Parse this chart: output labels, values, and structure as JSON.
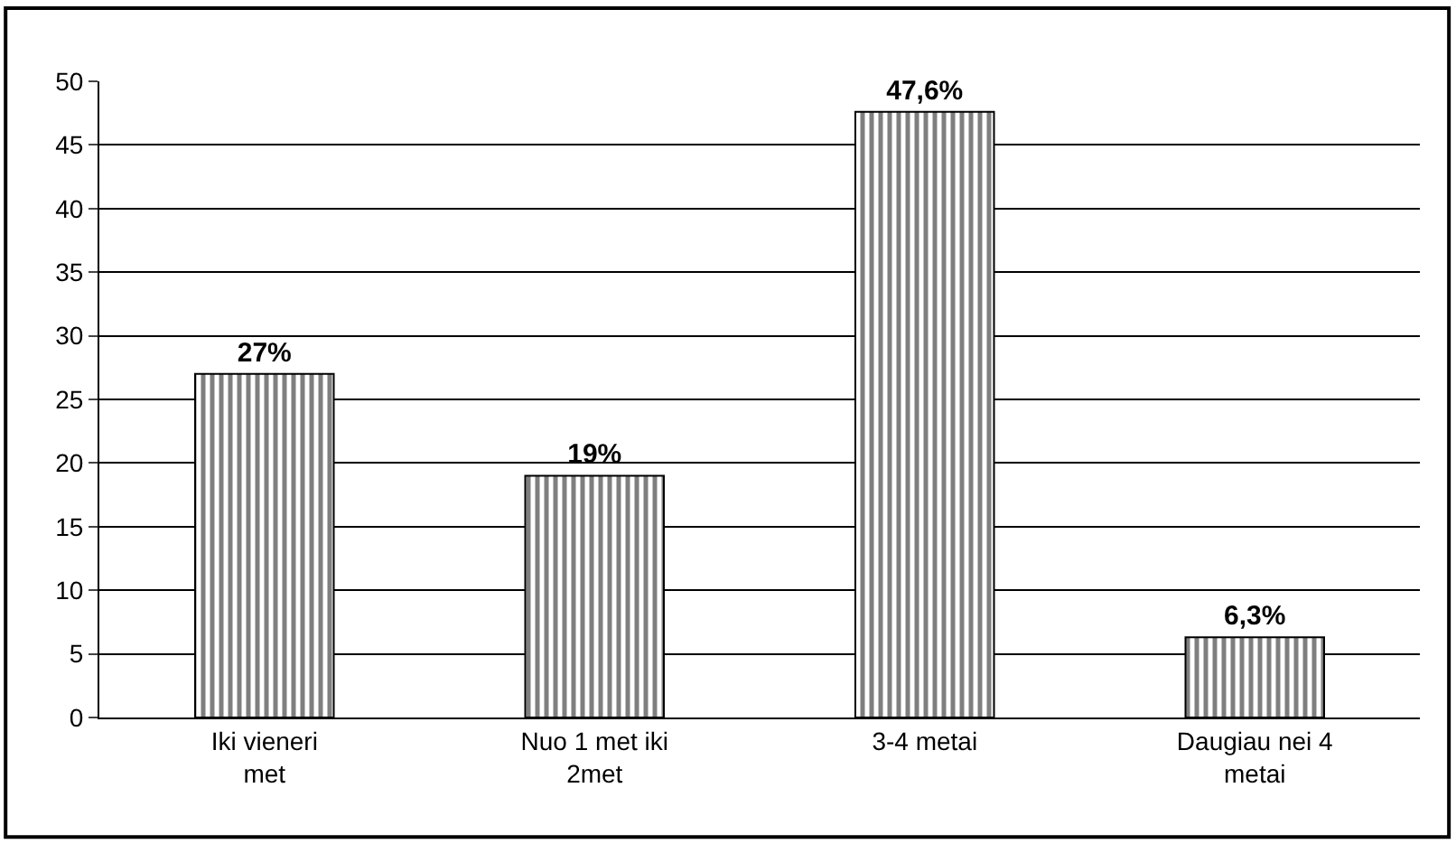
{
  "chart_data": {
    "type": "bar",
    "categories": [
      "Iki vieneri met",
      "Nuo 1 met iki 2met",
      "3-4 metai",
      "Daugiau nei 4 metai"
    ],
    "values": [
      27,
      19,
      47.6,
      6.3
    ],
    "value_labels": [
      "27%",
      "19%",
      "47,6%",
      "6,3%"
    ],
    "color": "#000000",
    "ylim": [
      0,
      50
    ],
    "yticks": [
      0,
      5,
      10,
      15,
      20,
      25,
      30,
      35,
      40,
      45,
      50
    ],
    "grid": "y"
  }
}
